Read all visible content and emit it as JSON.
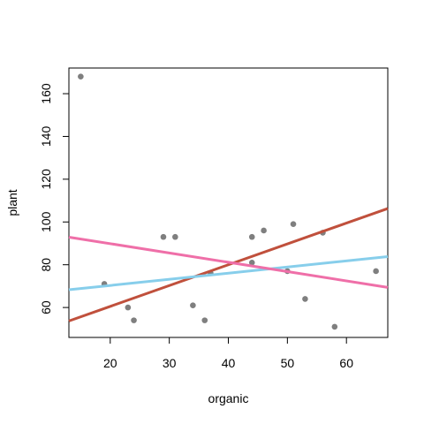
{
  "chart_data": {
    "type": "scatter",
    "title": "",
    "xlabel": "organic",
    "ylabel": "plant",
    "xlim": [
      13,
      67
    ],
    "ylim": [
      46,
      172
    ],
    "xticks": [
      20,
      30,
      40,
      50,
      60
    ],
    "yticks": [
      60,
      80,
      100,
      120,
      140,
      160
    ],
    "grid": false,
    "legend": "none",
    "points": {
      "color": "#7f7f7f",
      "x": [
        15,
        19,
        23,
        24,
        29,
        31,
        34,
        36,
        37,
        44,
        44,
        46,
        50,
        51,
        53,
        56,
        58,
        65
      ],
      "y": [
        168,
        71,
        60,
        54,
        93,
        93,
        61,
        54,
        76,
        93,
        81,
        96,
        77,
        99,
        64,
        95,
        51,
        77
      ]
    },
    "lines": [
      {
        "color": "#c0503c",
        "x": [
          13,
          67
        ],
        "y": [
          53.7,
          106.3
        ]
      },
      {
        "color": "#87ceeb",
        "x": [
          13,
          67
        ],
        "y": [
          68.3,
          83.8
        ]
      },
      {
        "color": "#ef6fa8",
        "x": [
          13,
          67
        ],
        "y": [
          92.9,
          69.4
        ]
      }
    ]
  }
}
